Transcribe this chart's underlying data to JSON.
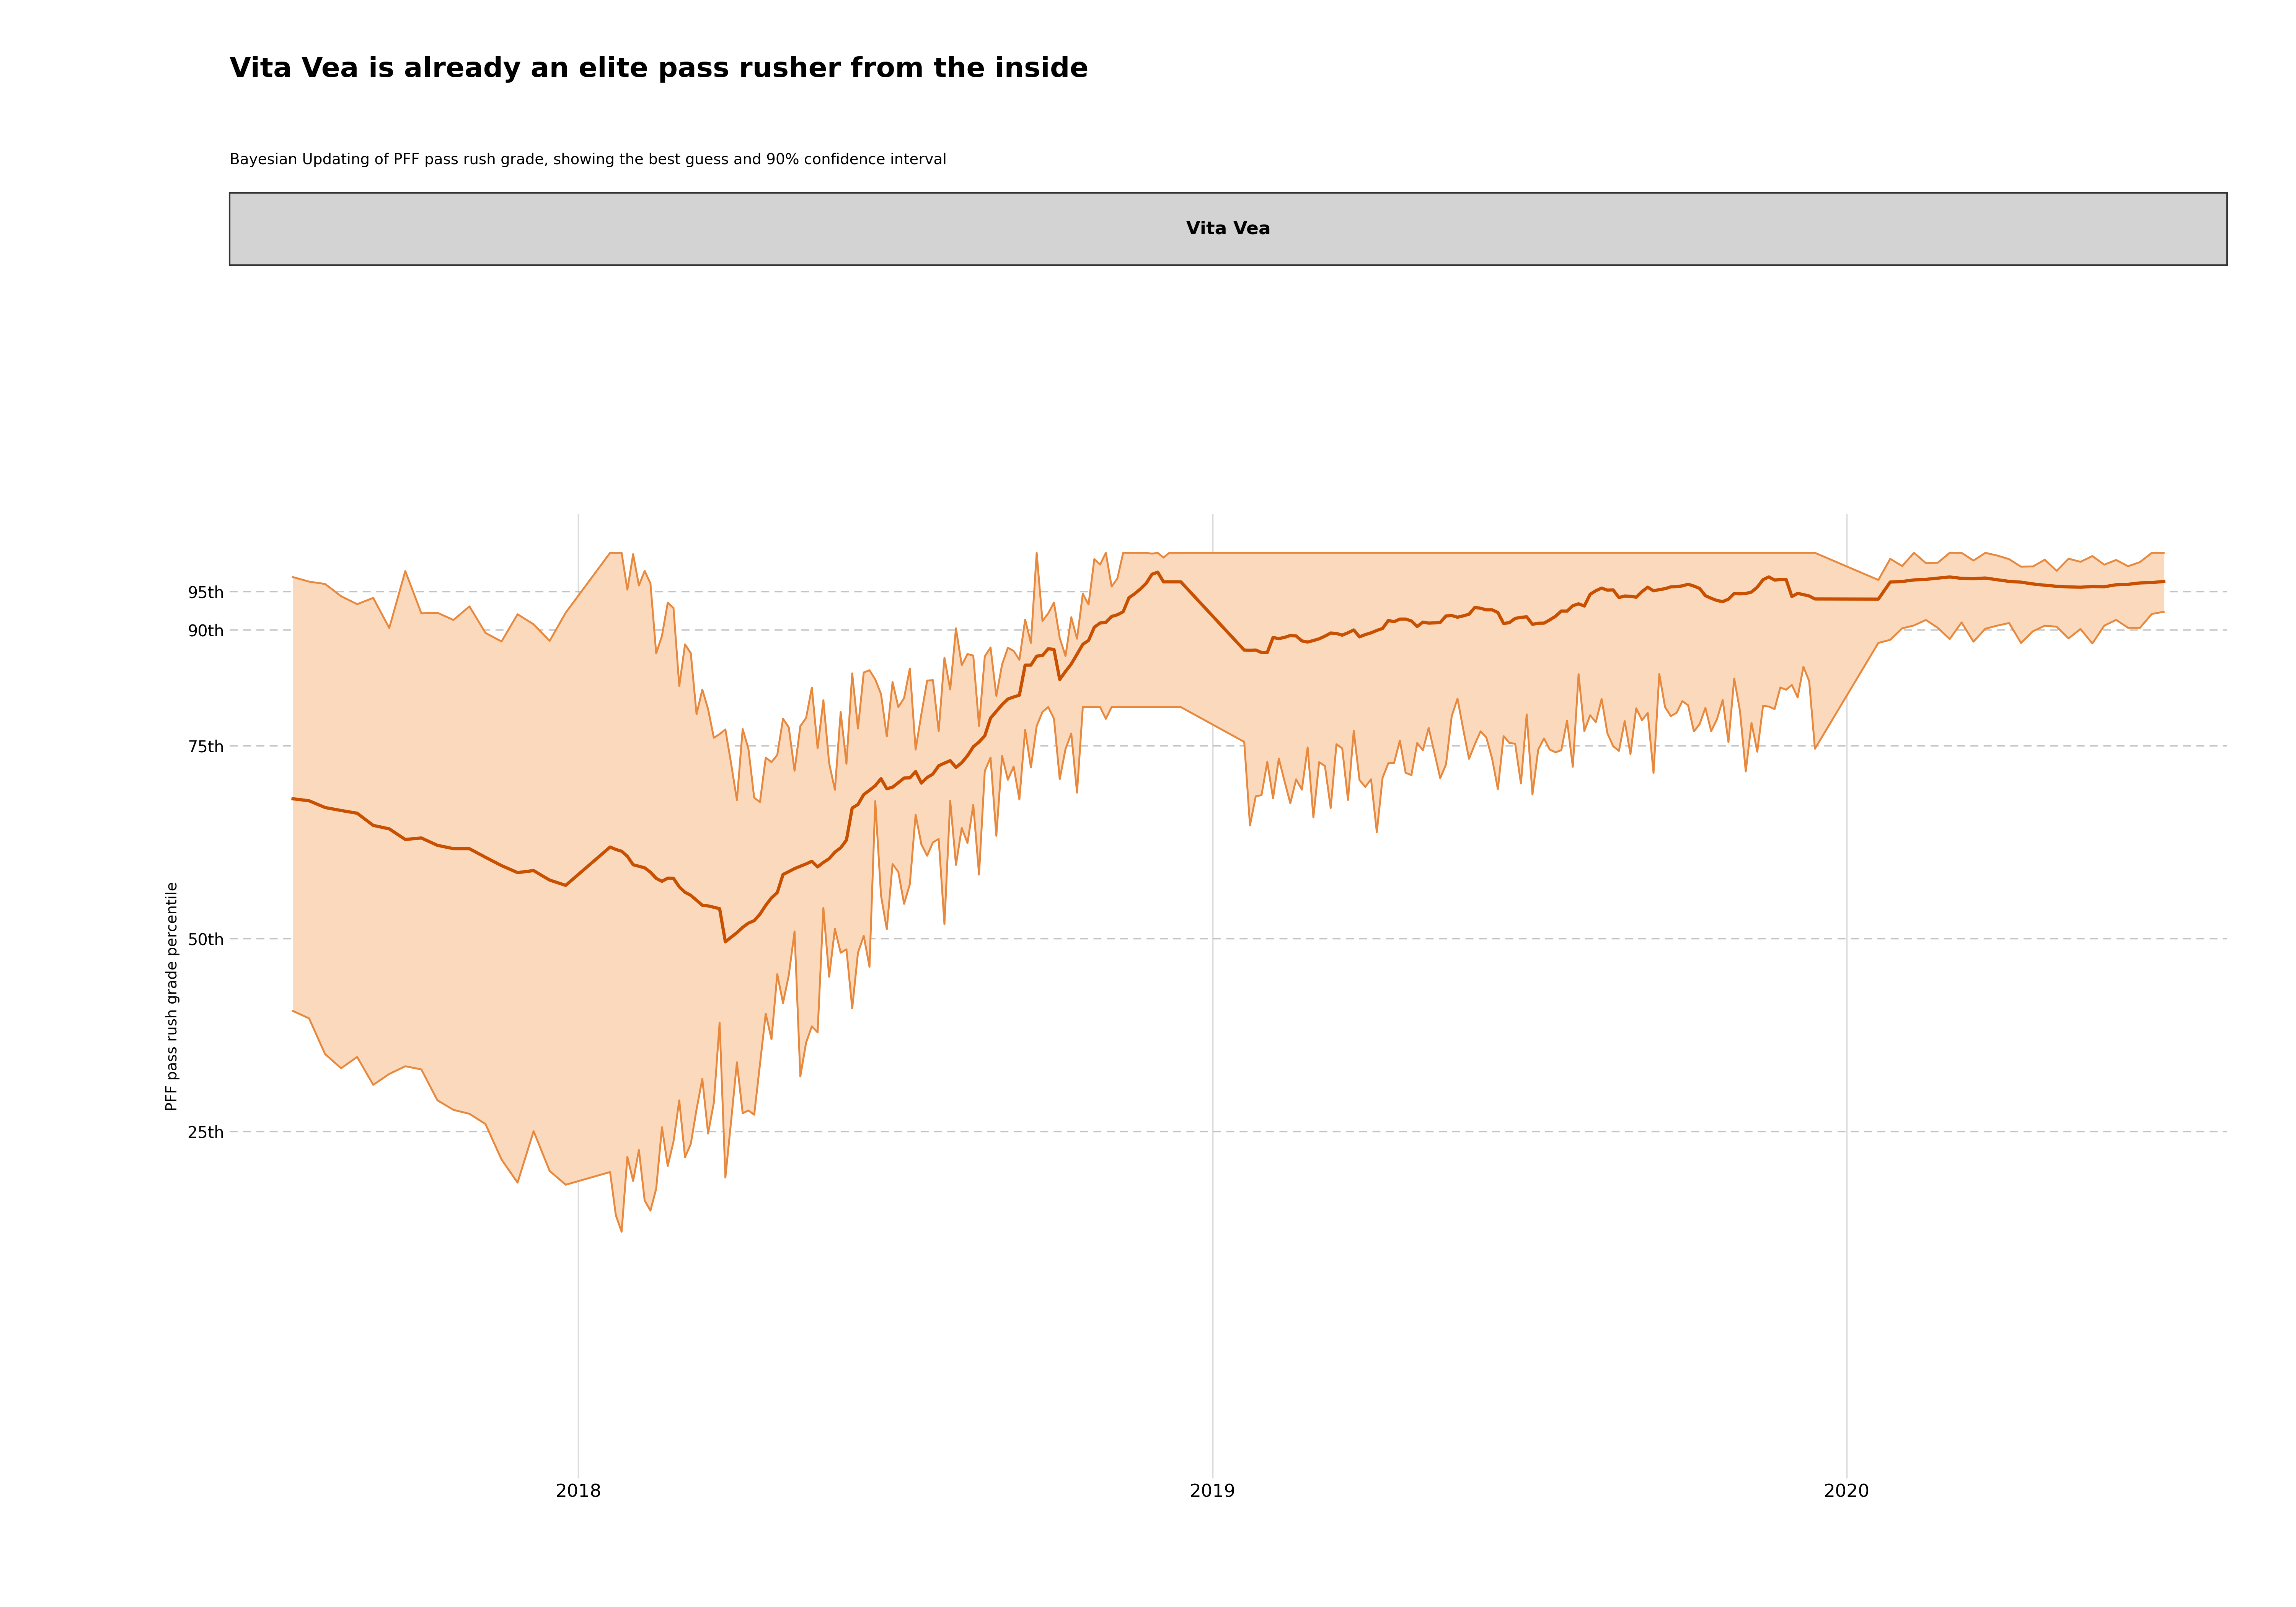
{
  "title": "Vita Vea is already an elite pass rusher from the inside",
  "subtitle": "Bayesian Updating of PFF pass rush grade, showing the best guess and 90% confidence interval",
  "legend_label": "Vita Vea",
  "ylabel": "PFF pass rush grade percentile",
  "ytick_labels": [
    "25th",
    "50th",
    "75th",
    "90th",
    "95th"
  ],
  "ytick_values": [
    25,
    50,
    75,
    90,
    95
  ],
  "ylim": [
    -20,
    105
  ],
  "xlim": [
    2017.45,
    2020.6
  ],
  "background_color": "#ffffff",
  "fill_color": "#fad9bc",
  "fill_alpha": 1.0,
  "line_color_center": "#c85000",
  "line_color_bounds": "#e8883d",
  "title_fontsize": 52,
  "subtitle_fontsize": 28,
  "ylabel_fontsize": 28,
  "tick_fontsize": 30,
  "xtick_fontsize": 34,
  "legend_bg_color": "#d3d3d3",
  "legend_edge_color": "#333333",
  "year_lines": [
    2018.0,
    2019.0,
    2020.0
  ],
  "grid_color": "#888888",
  "grid_alpha": 0.5,
  "vline_color": "#cccccc",
  "vline_alpha": 0.7
}
